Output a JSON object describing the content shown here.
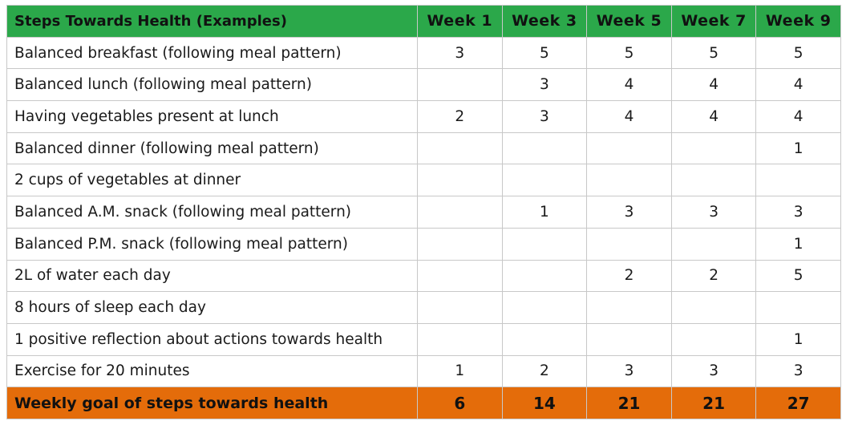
{
  "header": {
    "title": "Steps Towards Health (Examples)",
    "weeks": [
      "Week 1",
      "Week 3",
      "Week 5",
      "Week 7",
      "Week 9"
    ]
  },
  "rows": [
    {
      "label": "Balanced breakfast (following meal pattern)",
      "values": [
        "3",
        "5",
        "5",
        "5",
        "5"
      ]
    },
    {
      "label": "Balanced lunch (following meal pattern)",
      "values": [
        "",
        "3",
        "4",
        "4",
        "4"
      ]
    },
    {
      "label": "Having vegetables present at lunch",
      "values": [
        "2",
        "3",
        "4",
        "4",
        "4"
      ]
    },
    {
      "label": "Balanced dinner (following meal pattern)",
      "values": [
        "",
        "",
        "",
        "",
        "1"
      ]
    },
    {
      "label": "2 cups of vegetables at dinner",
      "values": [
        "",
        "",
        "",
        "",
        ""
      ]
    },
    {
      "label": "Balanced A.M. snack (following meal pattern)",
      "values": [
        "",
        "1",
        "3",
        "3",
        "3"
      ]
    },
    {
      "label": "Balanced P.M. snack (following meal pattern)",
      "values": [
        "",
        "",
        "",
        "",
        "1"
      ]
    },
    {
      "label": "2L of water each day",
      "values": [
        "",
        "",
        "2",
        "2",
        "5"
      ]
    },
    {
      "label": "8 hours of sleep each day",
      "values": [
        "",
        "",
        "",
        "",
        ""
      ]
    },
    {
      "label": "1 positive reflection about actions towards health",
      "values": [
        "",
        "",
        "",
        "",
        "1"
      ]
    },
    {
      "label": "Exercise  for 20 minutes",
      "values": [
        "1",
        "2",
        "3",
        "3",
        "3"
      ]
    }
  ],
  "footer": {
    "label": "Weekly goal of steps towards health",
    "values": [
      "6",
      "14",
      "21",
      "21",
      "27"
    ]
  },
  "colors": {
    "header_bg": "#2ba84a",
    "footer_bg": "#e46c0a",
    "border": "#c8c8c8"
  }
}
